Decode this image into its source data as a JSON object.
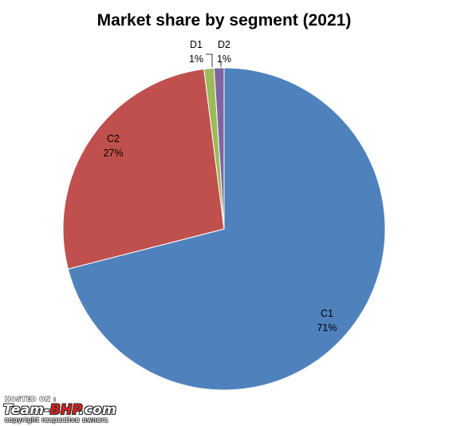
{
  "chart_data": {
    "type": "pie",
    "title": "Market share by segment (2021)",
    "categories": [
      "C1",
      "C2",
      "D1",
      "D2"
    ],
    "values": [
      71,
      27,
      1,
      1
    ],
    "value_labels": [
      "71%",
      "27%",
      "1%",
      "1%"
    ],
    "colors": [
      "#4f81bd",
      "#c0504d",
      "#9bbb59",
      "#8064a2"
    ],
    "start_angle_deg": 0,
    "direction": "clockwise",
    "legend": "none"
  },
  "watermark": {
    "hosted": "HOSTED ON :",
    "brand_main": "Team-",
    "brand_accent": "BHP",
    "brand_tail": ".com",
    "copyright": "copyright respective owners"
  }
}
